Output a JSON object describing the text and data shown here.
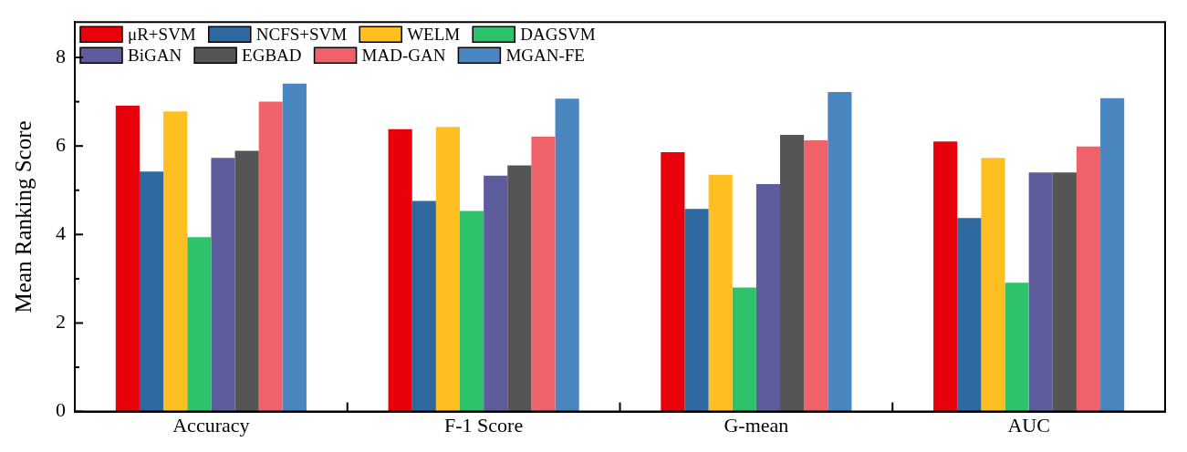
{
  "chart_data": {
    "type": "bar",
    "ylabel": "Mean Ranking Score",
    "categories": [
      "Accuracy",
      "F-1 Score",
      "G-mean",
      "AUC"
    ],
    "ylim": [
      0,
      8.8
    ],
    "yticks": [
      0,
      {
        "value": 1,
        "label": null
      },
      2,
      {
        "value": 3,
        "label": null
      },
      4,
      {
        "value": 5,
        "label": null
      },
      6,
      {
        "value": 7,
        "label": null
      },
      8
    ],
    "grid": false,
    "legend": "top left",
    "series": [
      {
        "name": "μR+SVM",
        "color": "#e8000b",
        "values": [
          6.91,
          6.38,
          5.86,
          6.1
        ]
      },
      {
        "name": "NCFS+SVM",
        "color": "#2e6aa1",
        "values": [
          5.42,
          4.76,
          4.58,
          4.37
        ]
      },
      {
        "name": "WELM",
        "color": "#fdc020",
        "values": [
          6.78,
          6.43,
          5.35,
          5.73
        ]
      },
      {
        "name": "DAGSVM",
        "color": "#2ec36a",
        "values": [
          3.94,
          4.53,
          2.8,
          2.91
        ]
      },
      {
        "name": "BiGAN",
        "color": "#5e5c9c",
        "values": [
          5.73,
          5.33,
          5.14,
          5.4
        ]
      },
      {
        "name": "EGBAD",
        "color": "#555555",
        "values": [
          5.89,
          5.56,
          6.25,
          5.4
        ]
      },
      {
        "name": "MAD-GAN",
        "color": "#f0626a",
        "values": [
          7.0,
          6.21,
          6.13,
          5.99
        ]
      },
      {
        "name": "MGAN-FE",
        "color": "#4a86c0",
        "values": [
          7.41,
          7.07,
          7.22,
          7.08
        ]
      }
    ]
  }
}
